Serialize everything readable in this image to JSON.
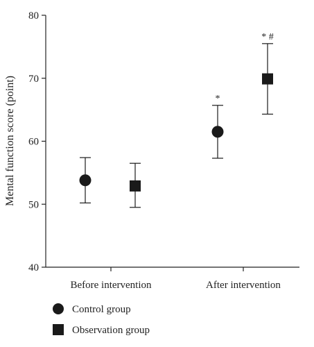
{
  "chart_data": {
    "type": "scatter",
    "title": "",
    "xlabel": "",
    "ylabel": "Mental function score (point)",
    "ylim": [
      40,
      80
    ],
    "yticks": [
      40,
      50,
      60,
      70,
      80
    ],
    "categories": [
      "Before intervention",
      "After intervention"
    ],
    "series": [
      {
        "name": "Control group",
        "marker": "circle",
        "values": [
          53.8,
          61.5
        ],
        "error_low": [
          50.2,
          57.3
        ],
        "error_high": [
          57.4,
          65.7
        ]
      },
      {
        "name": "Observation group",
        "marker": "square",
        "values": [
          52.9,
          69.9
        ],
        "error_low": [
          49.5,
          64.3
        ],
        "error_high": [
          56.5,
          75.5
        ]
      }
    ],
    "annotations": [
      {
        "series": 0,
        "category": 1,
        "text": "*"
      },
      {
        "series": 1,
        "category": 1,
        "text": "* #"
      }
    ],
    "legend_position": "bottom-left",
    "grid": false,
    "colors": {
      "marker": "#1a1a1a",
      "axis": "#222222"
    }
  }
}
